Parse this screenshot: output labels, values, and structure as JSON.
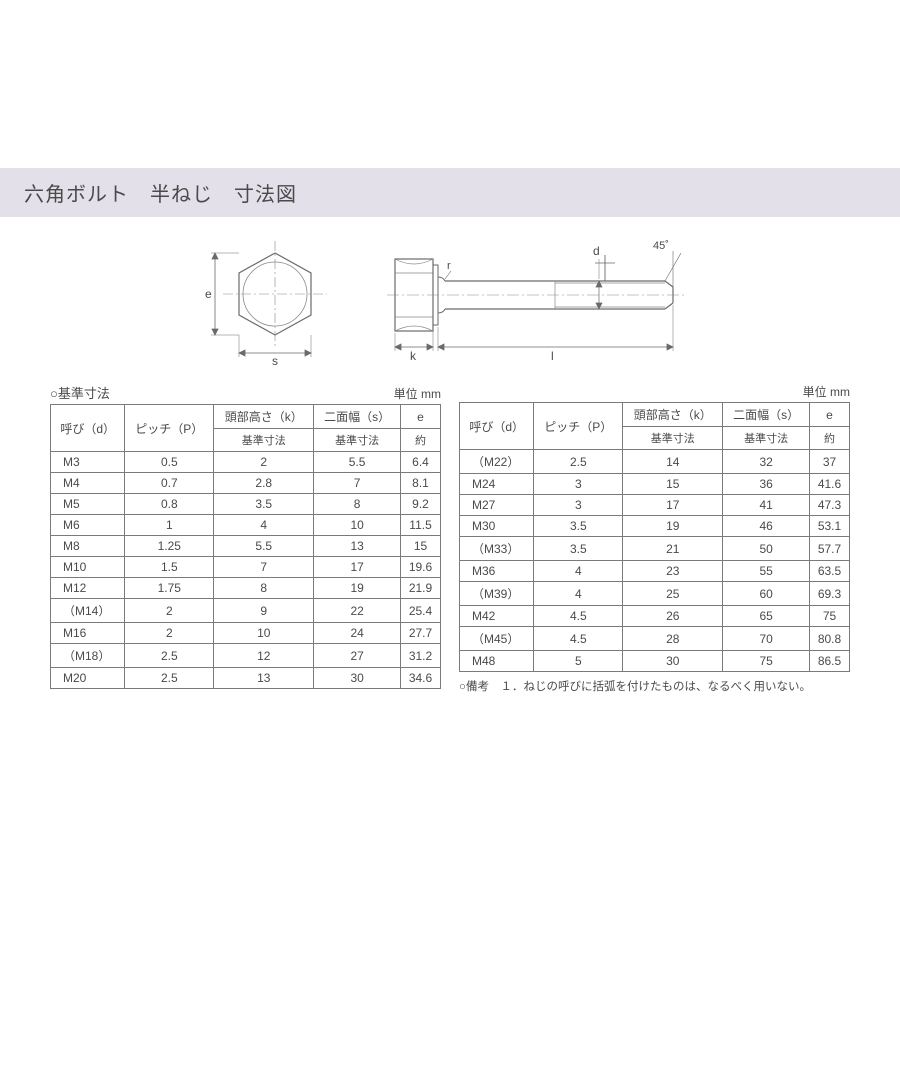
{
  "title": "六角ボルト　半ねじ　寸法図",
  "diagram": {
    "labels": {
      "e": "e",
      "s": "s",
      "k": "k",
      "l": "l",
      "d": "d",
      "r": "r",
      "angle": "45˚"
    },
    "stroke": "#6a6a6a",
    "thin": "#888888"
  },
  "left": {
    "caption": "○基準寸法",
    "unit": "単位 mm",
    "headerTop": [
      "呼び（d）",
      "ピッチ（P）",
      "頭部高さ（k）",
      "二面幅（s）",
      "e"
    ],
    "headerSub": [
      "基準寸法",
      "基準寸法",
      "約"
    ],
    "rows": [
      [
        "M3",
        "0.5",
        "2",
        "5.5",
        "6.4"
      ],
      [
        "M4",
        "0.7",
        "2.8",
        "7",
        "8.1"
      ],
      [
        "M5",
        "0.8",
        "3.5",
        "8",
        "9.2"
      ],
      [
        "M6",
        "1",
        "4",
        "10",
        "11.5"
      ],
      [
        "M8",
        "1.25",
        "5.5",
        "13",
        "15"
      ],
      [
        "M10",
        "1.5",
        "7",
        "17",
        "19.6"
      ],
      [
        "M12",
        "1.75",
        "8",
        "19",
        "21.9"
      ],
      [
        "（M14）",
        "2",
        "9",
        "22",
        "25.4"
      ],
      [
        "M16",
        "2",
        "10",
        "24",
        "27.7"
      ],
      [
        "（M18）",
        "2.5",
        "12",
        "27",
        "31.2"
      ],
      [
        "M20",
        "2.5",
        "13",
        "30",
        "34.6"
      ]
    ]
  },
  "right": {
    "caption": "",
    "unit": "単位 mm",
    "headerTop": [
      "呼び（d）",
      "ピッチ（P）",
      "頭部高さ（k）",
      "二面幅（s）",
      "e"
    ],
    "headerSub": [
      "基準寸法",
      "基準寸法",
      "約"
    ],
    "rows": [
      [
        "（M22）",
        "2.5",
        "14",
        "32",
        "37"
      ],
      [
        "M24",
        "3",
        "15",
        "36",
        "41.6"
      ],
      [
        "M27",
        "3",
        "17",
        "41",
        "47.3"
      ],
      [
        "M30",
        "3.5",
        "19",
        "46",
        "53.1"
      ],
      [
        "（M33）",
        "3.5",
        "21",
        "50",
        "57.7"
      ],
      [
        "M36",
        "4",
        "23",
        "55",
        "63.5"
      ],
      [
        "（M39）",
        "4",
        "25",
        "60",
        "69.3"
      ],
      [
        "M42",
        "4.5",
        "26",
        "65",
        "75"
      ],
      [
        "（M45）",
        "4.5",
        "28",
        "70",
        "80.8"
      ],
      [
        "M48",
        "5",
        "30",
        "75",
        "86.5"
      ]
    ]
  },
  "note": "○備考　１．ねじの呼びに括弧を付けたものは、なるべく用いない。"
}
